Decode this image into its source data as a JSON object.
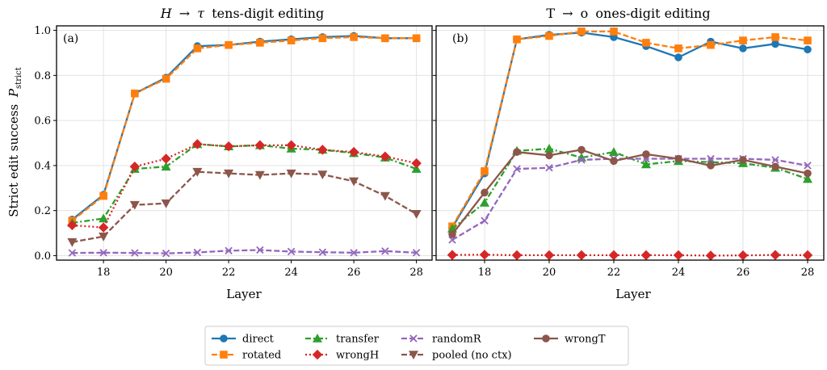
{
  "figure": {
    "ylabel": "Strict edit success",
    "ylabel_symbol": "P",
    "ylabel_sub": "strict"
  },
  "legend": {
    "placement": "bottom-center",
    "entries": [
      {
        "key": "direct",
        "label": "direct"
      },
      {
        "key": "rotated",
        "label": "rotated"
      },
      {
        "key": "transfer",
        "label": "transfer"
      },
      {
        "key": "wrongH",
        "label": "wrongH"
      },
      {
        "key": "randomR",
        "label": "randomR"
      },
      {
        "key": "pooled",
        "label": "pooled (no ctx)"
      },
      {
        "key": "wrongT",
        "label": "wrongT"
      }
    ]
  },
  "styles": {
    "direct": {
      "color": "#1f77b4",
      "dash": "solid",
      "marker": "circle"
    },
    "rotated": {
      "color": "#ff7f0e",
      "dash": "dashed",
      "marker": "square"
    },
    "transfer": {
      "color": "#2ca02c",
      "dash": "dashdot",
      "marker": "triangle-up"
    },
    "wrongH": {
      "color": "#d62728",
      "dash": "dotted",
      "marker": "diamond"
    },
    "randomR": {
      "color": "#9467bd",
      "dash": "dashed",
      "marker": "x"
    },
    "pooled": {
      "color": "#8c564b",
      "dash": "dashed",
      "marker": "triangle-down"
    },
    "wrongT": {
      "color": "#8c564b",
      "dash": "solid",
      "marker": "circle"
    }
  },
  "chart_data": [
    {
      "type": "line",
      "panel_tag": "(a)",
      "title": "H → τ tens-digit editing",
      "title_parts": {
        "source": "H",
        "arrow": "→",
        "target": "τ",
        "rest": "tens-digit editing"
      },
      "xlabel": "Layer",
      "ylabel": "Strict edit success P_strict",
      "xlim": [
        16.5,
        28.5
      ],
      "ylim": [
        -0.02,
        1.02
      ],
      "xticks": [
        18,
        20,
        22,
        24,
        26,
        28
      ],
      "yticks": [
        0.0,
        0.2,
        0.4,
        0.6,
        0.8,
        1.0
      ],
      "ytick_labels": [
        "0.0",
        "0.2",
        "0.4",
        "0.6",
        "0.8",
        "1.0"
      ],
      "grid": true,
      "x": [
        17,
        18,
        19,
        20,
        21,
        22,
        23,
        24,
        25,
        26,
        27,
        28
      ],
      "series": [
        {
          "key": "direct",
          "name": "direct",
          "values": [
            0.16,
            0.27,
            0.72,
            0.79,
            0.93,
            0.935,
            0.95,
            0.96,
            0.97,
            0.975,
            0.965,
            0.965
          ]
        },
        {
          "key": "rotated",
          "name": "rotated",
          "values": [
            0.155,
            0.265,
            0.72,
            0.785,
            0.92,
            0.935,
            0.945,
            0.955,
            0.965,
            0.97,
            0.965,
            0.965
          ]
        },
        {
          "key": "transfer",
          "name": "transfer",
          "values": [
            0.145,
            0.165,
            0.385,
            0.395,
            0.495,
            0.485,
            0.49,
            0.475,
            0.47,
            0.455,
            0.435,
            0.385
          ]
        },
        {
          "key": "wrongH",
          "name": "wrongH",
          "values": [
            0.135,
            0.125,
            0.395,
            0.43,
            0.495,
            0.485,
            0.49,
            0.49,
            0.47,
            0.46,
            0.44,
            0.41
          ]
        },
        {
          "key": "randomR",
          "name": "randomR",
          "values": [
            0.012,
            0.013,
            0.012,
            0.01,
            0.014,
            0.022,
            0.025,
            0.018,
            0.015,
            0.013,
            0.02,
            0.013
          ]
        },
        {
          "key": "pooled",
          "name": "pooled (no ctx)",
          "values": [
            0.06,
            0.085,
            0.225,
            0.232,
            0.372,
            0.365,
            0.358,
            0.365,
            0.36,
            0.33,
            0.265,
            0.185
          ]
        }
      ]
    },
    {
      "type": "line",
      "panel_tag": "(b)",
      "title": "T → o ones-digit editing",
      "title_parts": {
        "source": "T",
        "arrow": "→",
        "target": "o",
        "rest": "ones-digit editing"
      },
      "xlabel": "Layer",
      "xlim": [
        16.5,
        28.5
      ],
      "ylim": [
        -0.02,
        1.02
      ],
      "xticks": [
        18,
        20,
        22,
        24,
        26,
        28
      ],
      "yticks": [
        0.0,
        0.2,
        0.4,
        0.6,
        0.8,
        1.0
      ],
      "grid": true,
      "x": [
        17,
        18,
        19,
        20,
        21,
        22,
        23,
        24,
        25,
        26,
        27,
        28
      ],
      "series": [
        {
          "key": "direct",
          "name": "direct",
          "values": [
            0.125,
            0.365,
            0.96,
            0.98,
            0.99,
            0.97,
            0.93,
            0.88,
            0.95,
            0.92,
            0.94,
            0.915
          ]
        },
        {
          "key": "rotated",
          "name": "rotated",
          "values": [
            0.13,
            0.375,
            0.96,
            0.975,
            0.995,
            0.995,
            0.945,
            0.92,
            0.935,
            0.955,
            0.97,
            0.955
          ]
        },
        {
          "key": "transfer",
          "name": "transfer",
          "values": [
            0.12,
            0.235,
            0.465,
            0.475,
            0.435,
            0.46,
            0.405,
            0.42,
            0.415,
            0.41,
            0.39,
            0.34
          ]
        },
        {
          "key": "wrongH",
          "name": "wrongH",
          "values": [
            0.003,
            0.004,
            0.002,
            0.002,
            0.002,
            0.002,
            0.002,
            0.002,
            0.0,
            0.001,
            0.003,
            0.002
          ]
        },
        {
          "key": "randomR",
          "name": "randomR",
          "values": [
            0.07,
            0.155,
            0.385,
            0.39,
            0.425,
            0.43,
            0.43,
            0.43,
            0.43,
            0.43,
            0.425,
            0.4
          ]
        },
        {
          "key": "wrongT",
          "name": "wrongT",
          "values": [
            0.095,
            0.28,
            0.46,
            0.445,
            0.47,
            0.42,
            0.45,
            0.43,
            0.4,
            0.425,
            0.395,
            0.365
          ]
        }
      ]
    }
  ]
}
